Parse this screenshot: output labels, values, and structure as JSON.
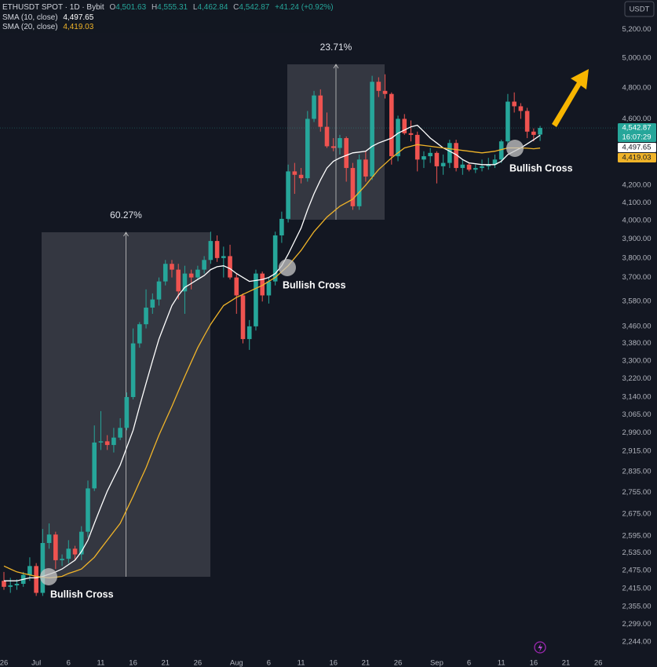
{
  "header": {
    "symbol": "ETHUSDT SPOT · 1D · Bybit",
    "ohlc": [
      {
        "key": "O",
        "value": "4,501.63"
      },
      {
        "key": "H",
        "value": "4,555.31"
      },
      {
        "key": "L",
        "value": "4,462.84"
      },
      {
        "key": "C",
        "value": "4,542.87"
      }
    ],
    "change": "+41.24 (+0.92%)",
    "currency": "USDT"
  },
  "chart_data": {
    "type": "candlestick",
    "log_scale": true,
    "grid": false,
    "up_color": "#26a69a",
    "down_color": "#ef5350",
    "categories": [
      "26",
      null,
      null,
      null,
      null,
      "Jul",
      null,
      null,
      null,
      null,
      "6",
      null,
      null,
      null,
      null,
      "11",
      null,
      null,
      null,
      null,
      "16",
      null,
      null,
      null,
      null,
      "21",
      null,
      null,
      null,
      null,
      "26",
      null,
      null,
      null,
      null,
      null,
      "Aug",
      null,
      null,
      null,
      null,
      "6",
      null,
      null,
      null,
      null,
      "11",
      null,
      null,
      null,
      null,
      "16",
      null,
      null,
      null,
      null,
      "21",
      null,
      null,
      null,
      null,
      "26",
      null,
      null,
      null,
      null,
      null,
      "Sep",
      null,
      null,
      null,
      null,
      "6",
      null,
      null,
      null,
      null,
      "11",
      null,
      null,
      null,
      null,
      "16",
      null,
      null,
      null,
      null,
      "21",
      null,
      null,
      null,
      null,
      "26",
      null
    ],
    "open": [
      2440,
      2420,
      2425,
      2430,
      2460,
      2490,
      2400,
      2570,
      2600,
      2510,
      2515,
      2550,
      2530,
      2610,
      2770,
      2950,
      2955,
      2940,
      2970,
      3010,
      3140,
      3380,
      3470,
      3550,
      3590,
      3680,
      3770,
      3740,
      3630,
      3720,
      3700,
      3740,
      3790,
      3890,
      3800,
      3810,
      3700,
      3610,
      3400,
      3460,
      3720,
      3610,
      3680,
      3920,
      4010,
      4280,
      4260,
      4240,
      4600,
      4750,
      4550,
      4430,
      4420,
      4480,
      4300,
      4080,
      4350,
      4250,
      4840,
      4780,
      4760,
      4370,
      4600,
      4510,
      4500,
      4350,
      4370,
      4390,
      4310,
      4330,
      4450,
      4300,
      4320,
      4290,
      4300,
      4310,
      4320,
      4350,
      4460,
      4710,
      4680,
      4650,
      4520,
      4501.63,
      null,
      null,
      null,
      null,
      null,
      null,
      null,
      null,
      null,
      null
    ],
    "high": [
      2470,
      2450,
      2445,
      2470,
      2520,
      2500,
      2620,
      2640,
      2610,
      2530,
      2580,
      2560,
      2630,
      2800,
      3020,
      3080,
      2980,
      3010,
      3050,
      3160,
      3450,
      3480,
      3640,
      3620,
      3700,
      3790,
      3790,
      3770,
      3760,
      3740,
      3760,
      3810,
      3940,
      3920,
      3860,
      3870,
      3720,
      3620,
      3490,
      3740,
      3730,
      3700,
      3940,
      4050,
      4320,
      4330,
      4300,
      4650,
      4780,
      4790,
      4640,
      4480,
      4500,
      4490,
      4330,
      4380,
      4400,
      4880,
      4870,
      4890,
      4770,
      4620,
      4630,
      4590,
      4520,
      4400,
      4420,
      4400,
      4380,
      4470,
      4470,
      4350,
      4330,
      4320,
      4350,
      4360,
      4380,
      4470,
      4760,
      4770,
      4700,
      4670,
      4540,
      4555.31,
      null,
      null,
      null,
      null,
      null,
      null,
      null,
      null,
      null,
      null
    ],
    "low": [
      2410,
      2400,
      2410,
      2420,
      2440,
      2390,
      2390,
      2550,
      2480,
      2490,
      2500,
      2510,
      2510,
      2590,
      2760,
      2920,
      2920,
      2910,
      2960,
      3000,
      3130,
      3360,
      3450,
      3520,
      3560,
      3660,
      3700,
      3590,
      3520,
      3640,
      3690,
      3720,
      3770,
      3780,
      3700,
      3690,
      3520,
      3380,
      3350,
      3440,
      3580,
      3570,
      3660,
      3880,
      3990,
      4150,
      4210,
      4220,
      4580,
      4520,
      4420,
      4400,
      4380,
      4220,
      4060,
      4060,
      4220,
      4230,
      4740,
      4730,
      4320,
      4340,
      4500,
      4460,
      4280,
      4300,
      4330,
      4210,
      4260,
      4300,
      4280,
      4260,
      4280,
      4270,
      4280,
      4290,
      4300,
      4330,
      4440,
      4640,
      4600,
      4480,
      4460,
      4462.84,
      null,
      null,
      null,
      null,
      null,
      null,
      null,
      null,
      null,
      null
    ],
    "close": [
      2420,
      2425,
      2430,
      2460,
      2490,
      2400,
      2570,
      2600,
      2510,
      2515,
      2550,
      2530,
      2610,
      2770,
      2950,
      2955,
      2940,
      2970,
      3010,
      3140,
      3380,
      3470,
      3550,
      3590,
      3680,
      3770,
      3740,
      3630,
      3720,
      3700,
      3740,
      3790,
      3890,
      3800,
      3810,
      3700,
      3610,
      3400,
      3460,
      3720,
      3610,
      3680,
      3920,
      4010,
      4280,
      4260,
      4240,
      4600,
      4750,
      4550,
      4430,
      4420,
      4480,
      4300,
      4080,
      4350,
      4250,
      4840,
      4780,
      4760,
      4370,
      4600,
      4510,
      4500,
      4350,
      4370,
      4390,
      4310,
      4330,
      4450,
      4300,
      4320,
      4290,
      4300,
      4310,
      4320,
      4350,
      4460,
      4710,
      4680,
      4650,
      4520,
      4500,
      4542.87,
      null,
      null,
      null,
      null,
      null,
      null,
      null,
      null,
      null,
      null
    ],
    "series": [
      {
        "name": "SMA (10, close)",
        "legend_value": "4,497.65",
        "color": "#ffffff",
        "values": [
          2440,
          2440,
          2440,
          2445,
          2450,
          2450,
          2455,
          2462,
          2470,
          2480,
          2495,
          2510,
          2540,
          2580,
          2640,
          2700,
          2760,
          2810,
          2860,
          2930,
          3000,
          3100,
          3200,
          3300,
          3400,
          3480,
          3560,
          3610,
          3650,
          3670,
          3690,
          3710,
          3740,
          3755,
          3760,
          3745,
          3720,
          3700,
          3680,
          3685,
          3690,
          3700,
          3720,
          3760,
          3820,
          3890,
          3960,
          4060,
          4150,
          4230,
          4300,
          4340,
          4360,
          4375,
          4390,
          4395,
          4400,
          4430,
          4450,
          4465,
          4480,
          4510,
          4530,
          4550,
          4560,
          4520,
          4480,
          4450,
          4420,
          4400,
          4380,
          4350,
          4330,
          4325,
          4320,
          4320,
          4320,
          4340,
          4380,
          4400,
          4420,
          4445,
          4470,
          4497.65,
          null,
          null,
          null,
          null,
          null,
          null,
          null,
          null,
          null,
          null
        ]
      },
      {
        "name": "SMA (20, close)",
        "legend_value": "4,419.03",
        "color": "#f0b429",
        "values": [
          2490,
          2480,
          2470,
          2465,
          2460,
          2455,
          2452,
          2450,
          2452,
          2455,
          2465,
          2472,
          2480,
          2500,
          2520,
          2550,
          2580,
          2610,
          2640,
          2690,
          2740,
          2795,
          2850,
          2915,
          2980,
          3040,
          3100,
          3165,
          3230,
          3295,
          3360,
          3415,
          3470,
          3515,
          3560,
          3580,
          3600,
          3615,
          3630,
          3645,
          3660,
          3680,
          3700,
          3730,
          3760,
          3800,
          3840,
          3890,
          3940,
          3980,
          4020,
          4050,
          4080,
          4100,
          4120,
          4160,
          4200,
          4245,
          4290,
          4325,
          4360,
          4390,
          4420,
          4430,
          4440,
          4435,
          4430,
          4425,
          4420,
          4415,
          4410,
          4405,
          4400,
          4395,
          4390,
          4395,
          4400,
          4410,
          4420,
          4420,
          4420,
          4418,
          4415,
          4419.03,
          null,
          null,
          null,
          null,
          null,
          null,
          null,
          null,
          null,
          null
        ]
      }
    ],
    "ylim": [
      2196,
      5415
    ],
    "yticks": [
      {
        "value": 5200,
        "label": "5,200.00"
      },
      {
        "value": 5000,
        "label": "5,000.00"
      },
      {
        "value": 4800,
        "label": "4,800.00"
      },
      {
        "value": 4600,
        "label": "4,600.00"
      },
      {
        "value": 4200,
        "label": "4,200.00"
      },
      {
        "value": 4100,
        "label": "4,100.00"
      },
      {
        "value": 4000,
        "label": "4,000.00"
      },
      {
        "value": 3900,
        "label": "3,900.00"
      },
      {
        "value": 3800,
        "label": "3,800.00"
      },
      {
        "value": 3700,
        "label": "3,700.00"
      },
      {
        "value": 3580,
        "label": "3,580.00"
      },
      {
        "value": 3460,
        "label": "3,460.00"
      },
      {
        "value": 3380,
        "label": "3,380.00"
      },
      {
        "value": 3300,
        "label": "3,300.00"
      },
      {
        "value": 3220,
        "label": "3,220.00"
      },
      {
        "value": 3140,
        "label": "3,140.00"
      },
      {
        "value": 3065,
        "label": "3,065.00"
      },
      {
        "value": 2990,
        "label": "2,990.00"
      },
      {
        "value": 2915,
        "label": "2,915.00"
      },
      {
        "value": 2835,
        "label": "2,835.00"
      },
      {
        "value": 2755,
        "label": "2,755.00"
      },
      {
        "value": 2675,
        "label": "2,675.00"
      },
      {
        "value": 2595,
        "label": "2,595.00"
      },
      {
        "value": 2535,
        "label": "2,535.00"
      },
      {
        "value": 2475,
        "label": "2,475.00"
      },
      {
        "value": 2415,
        "label": "2,415.00"
      },
      {
        "value": 2355,
        "label": "2,355.00"
      },
      {
        "value": 2299,
        "label": "2,299.00"
      },
      {
        "value": 2244,
        "label": "2,244.00"
      }
    ],
    "price_tags": [
      {
        "value": 4542.87,
        "label": "4,542.87",
        "countdown": "16:07:29",
        "color": "#26a69a"
      },
      {
        "value": 4497.65,
        "label": "4,497.65",
        "color": "#ffffff"
      },
      {
        "value": 4419.03,
        "label": "4,419.03",
        "color": "#f0b429"
      }
    ],
    "measures": [
      "60.27%",
      "23.71%"
    ],
    "annotations": [
      "Bullish Cross",
      "Bullish Cross",
      "Bullish Cross"
    ]
  }
}
